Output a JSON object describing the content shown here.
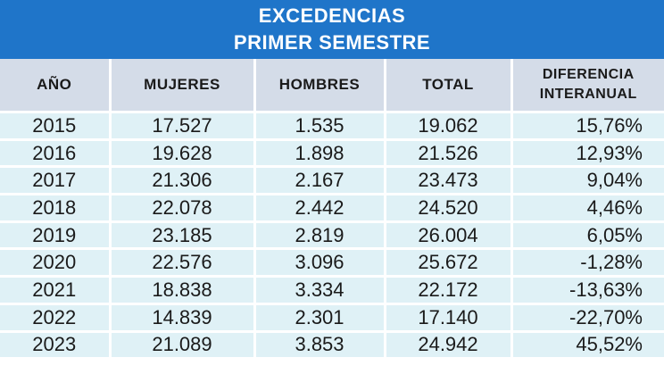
{
  "title": {
    "line1": "EXCEDENCIAS",
    "line2": "PRIMER SEMESTRE"
  },
  "table": {
    "headers": {
      "year": "AÑO",
      "women": "MUJERES",
      "men": "HOMBRES",
      "total": "TOTAL",
      "diff_line1": "DIFERENCIA",
      "diff_line2": "INTERANUAL"
    },
    "rows": [
      {
        "year": "2015",
        "women": "17.527",
        "men": "1.535",
        "total": "19.062",
        "diff": "15,76%"
      },
      {
        "year": "2016",
        "women": "19.628",
        "men": "1.898",
        "total": "21.526",
        "diff": "12,93%"
      },
      {
        "year": "2017",
        "women": "21.306",
        "men": "2.167",
        "total": "23.473",
        "diff": "9,04%"
      },
      {
        "year": "2018",
        "women": "22.078",
        "men": "2.442",
        "total": "24.520",
        "diff": "4,46%"
      },
      {
        "year": "2019",
        "women": "23.185",
        "men": "2.819",
        "total": "26.004",
        "diff": "6,05%"
      },
      {
        "year": "2020",
        "women": "22.576",
        "men": "3.096",
        "total": "25.672",
        "diff": "-1,28%"
      },
      {
        "year": "2021",
        "women": "18.838",
        "men": "3.334",
        "total": "22.172",
        "diff": "-13,63%"
      },
      {
        "year": "2022",
        "women": "14.839",
        "men": "2.301",
        "total": "17.140",
        "diff": "-22,70%"
      },
      {
        "year": "2023",
        "women": "21.089",
        "men": "3.853",
        "total": "24.942",
        "diff": "45,52%"
      }
    ]
  },
  "colors": {
    "title_bg": "#1f75c9",
    "header_bg": "#d4dce8",
    "row_bg": "#dff1f6"
  }
}
